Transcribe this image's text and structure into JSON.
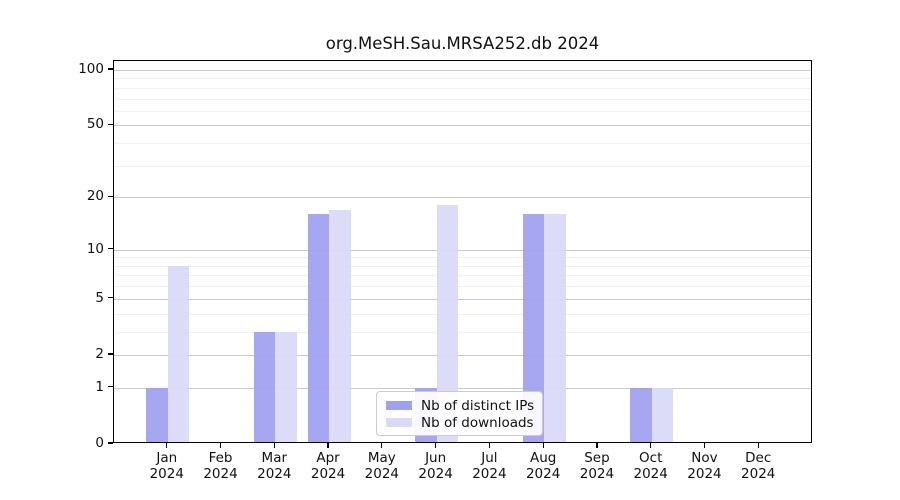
{
  "title": "org.MeSH.Sau.MRSA252.db 2024",
  "chart_data": {
    "type": "bar",
    "title": "org.MeSH.Sau.MRSA252.db 2024",
    "y_scale": "log10(value+1)",
    "categories": [
      "Jan",
      "Feb",
      "Mar",
      "Apr",
      "May",
      "Jun",
      "Jul",
      "Aug",
      "Sep",
      "Oct",
      "Nov",
      "Dec"
    ],
    "x_year_label": "2024",
    "series": [
      {
        "name": "Nb of distinct IPs",
        "color": "#a0a0f0",
        "values": [
          1,
          0,
          3,
          16,
          0,
          1,
          0,
          16,
          0,
          1,
          0,
          0
        ]
      },
      {
        "name": "Nb of downloads",
        "color": "#d9d9f8",
        "values": [
          8,
          0,
          3,
          17,
          0,
          18,
          0,
          16,
          0,
          1,
          0,
          0
        ]
      }
    ],
    "yticks": [
      0,
      1,
      2,
      5,
      10,
      20,
      50,
      100
    ],
    "minor_gridlines": [
      3,
      4,
      6,
      7,
      8,
      9,
      30,
      40,
      60,
      70,
      80,
      90
    ],
    "ylim": [
      0,
      112
    ],
    "xlabel": "",
    "ylabel": "",
    "grid": true,
    "legend_position": "lower center",
    "colors": {
      "grid_major": "#c9c9c9",
      "grid_minor": "#f0f0f0",
      "spine": "#000000",
      "text": "#111111",
      "legend_border": "#cccccc",
      "legend_background": "#ffffff"
    }
  }
}
